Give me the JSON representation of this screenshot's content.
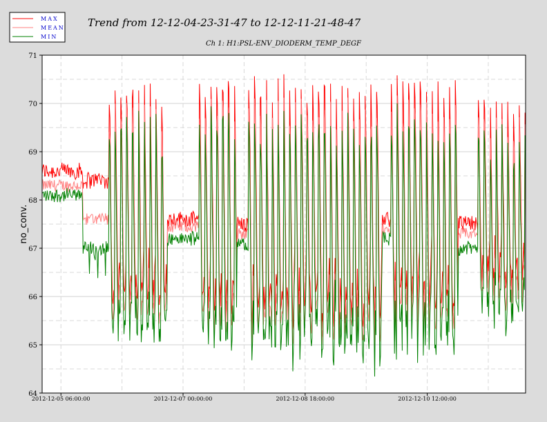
{
  "chart_data": {
    "type": "line",
    "title": "Trend from 12-12-04-23-31-47 to 12-12-11-21-48-47",
    "subtitle": "Ch 1: H1:PSL-ENV_DIODERM_TEMP_DEGF",
    "xlabel": "",
    "ylabel": "no_conv.",
    "ylim": [
      64,
      71
    ],
    "yticks": [
      64,
      65,
      66,
      67,
      68,
      69,
      70,
      71
    ],
    "xtick_labels": [
      "2012-12-05 06:00:00",
      "2012-12-07 00:00:00",
      "2012-12-08 18:00:00",
      "2012-12-10 12:00:00"
    ],
    "xlim_hours": [
      0,
      166.3
    ],
    "xtick_hours": [
      6.47,
      48.47,
      90.47,
      132.47
    ],
    "grid": true,
    "legend_position": "top-left",
    "legend": [
      {
        "name": "MAX",
        "color": "#ff0000"
      },
      {
        "name": "MEAN",
        "color": "#ff8080"
      },
      {
        "name": "MIN",
        "color": "#008000"
      }
    ],
    "segments": [
      {
        "start": 0,
        "end": 14,
        "mode": "flat",
        "base": 68.3,
        "upper": 68.6,
        "lower": 68.1
      },
      {
        "start": 14,
        "end": 23,
        "mode": "transition",
        "base": 67.6,
        "upper": 68.4,
        "lower": 67.0
      },
      {
        "start": 23,
        "end": 43,
        "mode": "oscillate",
        "high": 69.7,
        "low": 65.5
      },
      {
        "start": 43,
        "end": 54,
        "mode": "flat",
        "base": 67.45,
        "upper": 67.6,
        "lower": 67.2
      },
      {
        "start": 54,
        "end": 67,
        "mode": "oscillate",
        "high": 69.9,
        "low": 65.3
      },
      {
        "start": 67,
        "end": 71,
        "mode": "flat",
        "base": 67.3,
        "upper": 67.5,
        "lower": 67.1
      },
      {
        "start": 71,
        "end": 117,
        "mode": "oscillate",
        "high": 69.8,
        "low": 65.3
      },
      {
        "start": 117,
        "end": 120,
        "mode": "flat",
        "base": 67.4,
        "upper": 67.6,
        "lower": 67.2
      },
      {
        "start": 120,
        "end": 143,
        "mode": "oscillate",
        "high": 69.9,
        "low": 65.4
      },
      {
        "start": 143,
        "end": 150,
        "mode": "flat",
        "base": 67.3,
        "upper": 67.5,
        "lower": 67.0
      },
      {
        "start": 150,
        "end": 166.3,
        "mode": "oscillate",
        "high": 69.5,
        "low": 66.0
      }
    ],
    "series": [
      {
        "name": "MAX",
        "color": "#ff0000"
      },
      {
        "name": "MEAN",
        "color": "#ff8080"
      },
      {
        "name": "MIN",
        "color": "#008000"
      }
    ]
  }
}
